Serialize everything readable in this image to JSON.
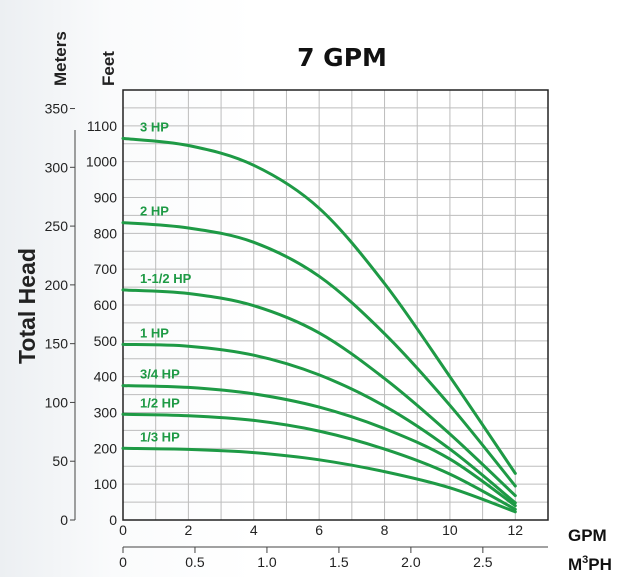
{
  "chart_data": {
    "type": "line",
    "title": "7 GPM",
    "ylabel": "Total Head",
    "y_primary": {
      "unit": "Feet",
      "ylim": [
        0,
        1200
      ],
      "ticks": [
        0,
        100,
        200,
        300,
        400,
        500,
        600,
        700,
        800,
        900,
        1000,
        1100
      ]
    },
    "y_secondary": {
      "unit": "Meters",
      "ticks": [
        0,
        50,
        100,
        150,
        200,
        250,
        300,
        350
      ]
    },
    "x_primary": {
      "unit": "GPM",
      "xlim": [
        0,
        13
      ],
      "ticks": [
        0,
        2,
        4,
        6,
        8,
        10,
        12
      ]
    },
    "x_secondary": {
      "unit": "M³PH",
      "ticks": [
        "0",
        "0.5",
        "1.0",
        "1.5",
        "2.0",
        "2.5"
      ]
    },
    "unit_superscript": {
      "base_start": "M",
      "sup": "3",
      "base_end": "PH"
    },
    "grid": true,
    "color": "#1e9a45",
    "x": [
      0,
      2,
      4,
      6,
      8,
      10,
      12
    ],
    "series": [
      {
        "name": "3 HP",
        "values": [
          1065,
          1045,
          990,
          870,
          660,
          400,
          130
        ]
      },
      {
        "name": "2 HP",
        "values": [
          830,
          815,
          775,
          680,
          520,
          320,
          95
        ]
      },
      {
        "name": "1-1/2 HP",
        "values": [
          642,
          632,
          598,
          522,
          395,
          240,
          68
        ]
      },
      {
        "name": "1 HP",
        "values": [
          490,
          485,
          460,
          405,
          318,
          198,
          48
        ]
      },
      {
        "name": "3/4 HP",
        "values": [
          375,
          370,
          352,
          315,
          255,
          170,
          40
        ]
      },
      {
        "name": "1/2 HP",
        "values": [
          295,
          291,
          278,
          248,
          198,
          128,
          30
        ]
      },
      {
        "name": "1/3 HP",
        "values": [
          200,
          197,
          188,
          168,
          135,
          90,
          23
        ]
      }
    ]
  }
}
